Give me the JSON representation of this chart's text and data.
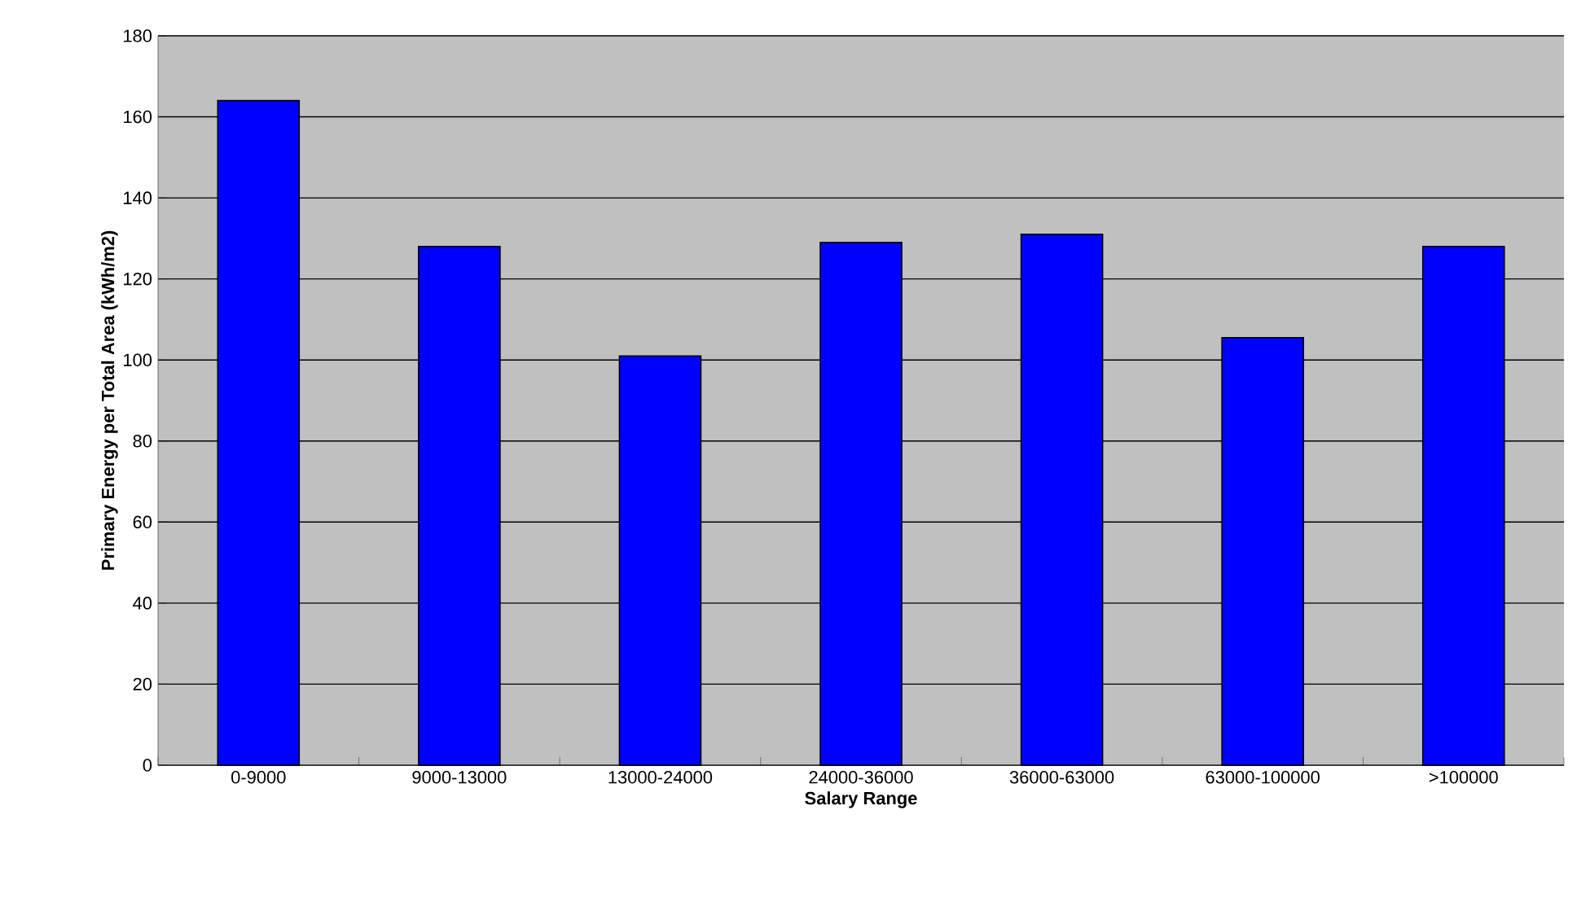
{
  "chart_data": {
    "type": "bar",
    "xlabel": "Salary Range",
    "ylabel": "Primary Energy per Total Area (kWh/m2)",
    "categories": [
      "0-9000",
      "9000-13000",
      "13000-24000",
      "24000-36000",
      "36000-63000",
      "63000-100000",
      ">100000"
    ],
    "values": [
      164,
      128,
      101,
      129,
      131,
      105.5,
      128
    ],
    "color": "#0000ff",
    "ylim": [
      0,
      180
    ],
    "yticks": [
      0,
      20,
      40,
      60,
      80,
      100,
      120,
      140,
      160,
      180
    ],
    "grid": "y"
  }
}
